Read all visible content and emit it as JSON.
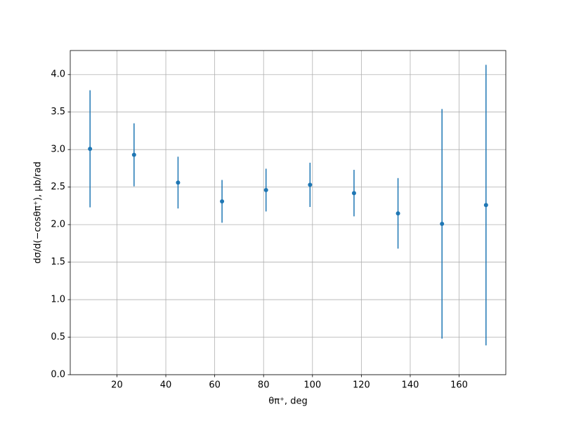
{
  "chart_data": {
    "type": "errorbar",
    "x_label": "θπ⁺, deg",
    "y_label": "dσ/d(−cosθπ⁺), μb/rad",
    "x": [
      9,
      27,
      45,
      63,
      81,
      99,
      117,
      135,
      153,
      171
    ],
    "series": [
      {
        "color": "#1f77b4",
        "values": [
          3.01,
          2.93,
          2.56,
          2.31,
          2.46,
          2.53,
          2.42,
          2.15,
          2.01,
          2.26
        ],
        "errors": [
          0.78,
          0.42,
          0.345,
          0.285,
          0.285,
          0.295,
          0.31,
          0.47,
          1.53,
          1.87
        ]
      }
    ],
    "xlim": [
      0.9,
      179.1
    ],
    "ylim": [
      0,
      4.32
    ],
    "xticks": [
      20,
      40,
      60,
      80,
      100,
      120,
      140,
      160
    ],
    "yticks": [
      {
        "value": 0,
        "label": "0.0"
      },
      {
        "value": 0.5,
        "label": "0.5"
      },
      {
        "value": 1,
        "label": "1.0"
      },
      {
        "value": 1.5,
        "label": "1.5"
      },
      {
        "value": 2,
        "label": "2.0"
      },
      {
        "value": 2.5,
        "label": "2.5"
      },
      {
        "value": 3,
        "label": "3.0"
      },
      {
        "value": 3.5,
        "label": "3.5"
      },
      {
        "value": 4,
        "label": "4.0"
      }
    ],
    "grid": true
  }
}
